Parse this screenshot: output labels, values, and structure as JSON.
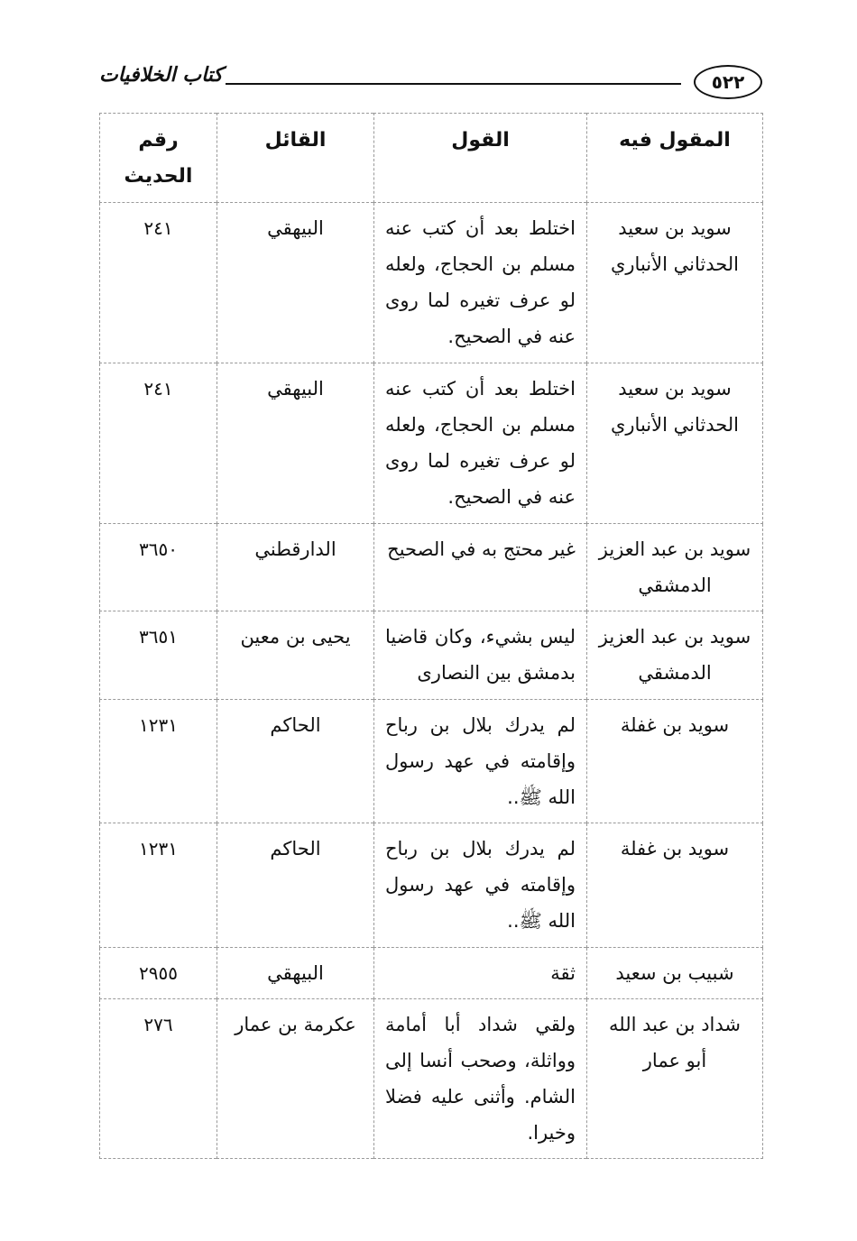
{
  "header": {
    "page_number": "٥٢٢",
    "book_title": "كتاب الخلافيات"
  },
  "columns": [
    "المقول فيه",
    "القول",
    "القائل",
    "رقم الحديث"
  ],
  "rows": [
    {
      "subject": "سويد بن سعيد الحدثاني الأنباري",
      "statement": "اختلط بعد أن كتب عنه مسلم بن الحجاج، ولعله لو عرف تغيره لما روى عنه في الصحيح.",
      "speaker": "البيهقي",
      "hadith_no": "٢٤١"
    },
    {
      "subject": "سويد بن سعيد الحدثاني الأنباري",
      "statement": "اختلط بعد أن كتب عنه مسلم بن الحجاج، ولعله لو عرف تغيره لما روى عنه في الصحيح.",
      "speaker": "البيهقي",
      "hadith_no": "٢٤١"
    },
    {
      "subject": "سويد بن عبد العزيز الدمشقي",
      "statement": "غير محتج به في الصحيح",
      "speaker": "الدارقطني",
      "hadith_no": "٣٦٥٠"
    },
    {
      "subject": "سويد بن عبد العزيز الدمشقي",
      "statement": "ليس بشيء، وكان قاضيا بدمشق بين النصارى",
      "speaker": "يحيى بن معين",
      "hadith_no": "٣٦٥١"
    },
    {
      "subject": "سويد بن غفلة",
      "statement": "لم يدرك بلال بن رباح وإقامته في عهد رسول الله ﷺ..",
      "speaker": "الحاكم",
      "hadith_no": "١٢٣١"
    },
    {
      "subject": "سويد بن غفلة",
      "statement": "لم يدرك بلال بن رباح وإقامته في عهد رسول الله ﷺ..",
      "speaker": "الحاكم",
      "hadith_no": "١٢٣١"
    },
    {
      "subject": "شبيب بن سعيد",
      "statement": "ثقة",
      "speaker": "البيهقي",
      "hadith_no": "٢٩٥٥"
    },
    {
      "subject": "شداد بن عبد الله أبو عمار",
      "statement": "ولقي شداد أبا أمامة وواثلة، وصحب أنسا إلى الشام. وأثنى عليه فضلا وخيرا.",
      "speaker": "عكرمة بن عمار",
      "hadith_no": "٢٧٦"
    }
  ]
}
